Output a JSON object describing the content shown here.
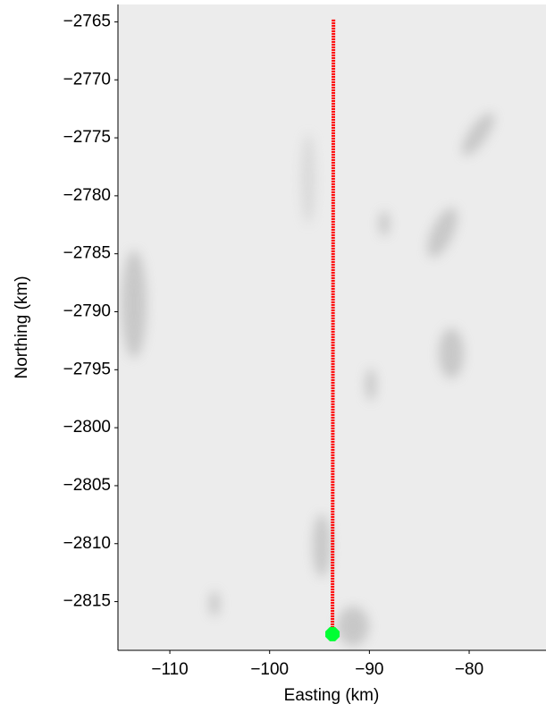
{
  "chart_data": {
    "type": "line",
    "xlabel": "Easting (km)",
    "ylabel": "Northing (km)",
    "xlim": [
      -115.2,
      -72.3
    ],
    "ylim": [
      -2819.2,
      -2763.5
    ],
    "xticks": [
      {
        "value": -110,
        "label": "−110"
      },
      {
        "value": -100,
        "label": "−100"
      },
      {
        "value": -90,
        "label": "−90"
      },
      {
        "value": -80,
        "label": "−80"
      }
    ],
    "yticks": [
      {
        "value": -2765,
        "label": "−2765"
      },
      {
        "value": -2770,
        "label": "−2770"
      },
      {
        "value": -2775,
        "label": "−2775"
      },
      {
        "value": -2780,
        "label": "−2780"
      },
      {
        "value": -2785,
        "label": "−2785"
      },
      {
        "value": -2790,
        "label": "−2790"
      },
      {
        "value": -2795,
        "label": "−2795"
      },
      {
        "value": -2800,
        "label": "−2800"
      },
      {
        "value": -2805,
        "label": "−2805"
      },
      {
        "value": -2810,
        "label": "−2810"
      },
      {
        "value": -2815,
        "label": "−2815"
      }
    ],
    "series": [
      {
        "color": "#ff0000",
        "x": [
          -93.6,
          -93.7
        ],
        "values": [
          -2764.8,
          -2817.8
        ]
      },
      {
        "color": "#00ff33",
        "x": [
          -93.7
        ],
        "values": [
          -2817.8
        ]
      }
    ]
  }
}
